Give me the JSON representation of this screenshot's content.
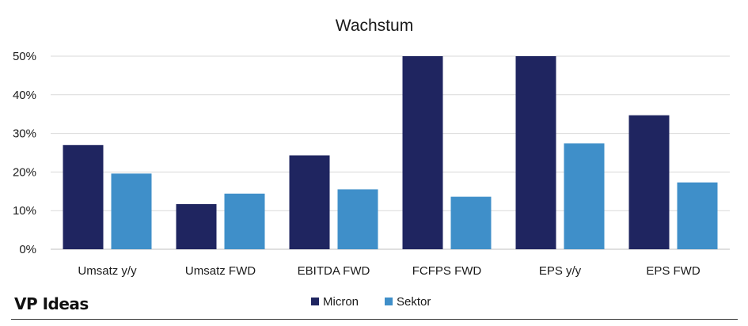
{
  "chart_data": {
    "type": "bar",
    "title": "Wachstum",
    "categories": [
      "Umsatz y/y",
      "Umsatz FWD",
      "EBITDA FWD",
      "FCFPS FWD",
      "EPS y/y",
      "EPS FWD"
    ],
    "series": [
      {
        "name": "Micron",
        "color": "#1f2560",
        "values": [
          27,
          11.7,
          24.3,
          50,
          50,
          34.7
        ]
      },
      {
        "name": "Sektor",
        "color": "#3f8fc9",
        "values": [
          19.6,
          14.4,
          15.5,
          13.6,
          27.4,
          17.3
        ]
      }
    ],
    "yticks": [
      "0%",
      "10%",
      "20%",
      "30%",
      "40%",
      "50%"
    ],
    "ylim": [
      0,
      50
    ],
    "grid": true,
    "legend": "bottom"
  },
  "branding": {
    "label": "VP Ideas"
  }
}
